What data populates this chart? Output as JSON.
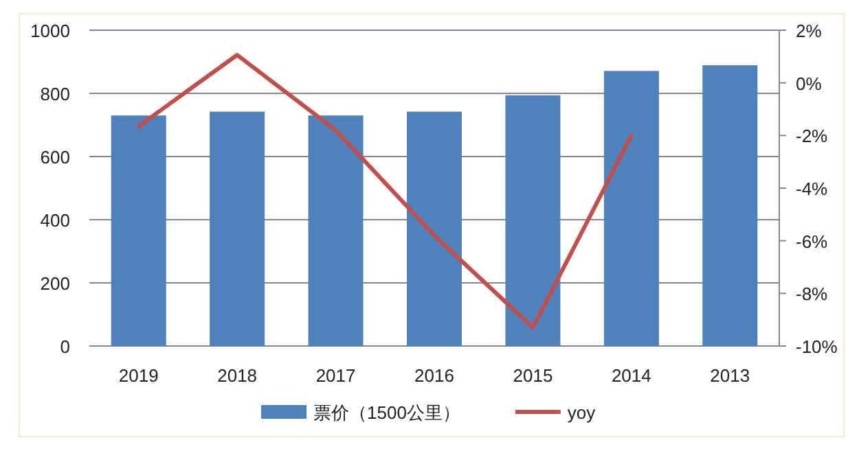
{
  "chart_data": {
    "type": "bar",
    "categories": [
      "2019",
      "2018",
      "2017",
      "2016",
      "2015",
      "2014",
      "2013"
    ],
    "series": [
      {
        "name": "票价（1500公里）",
        "color": "#4f81bd",
        "values": [
          730,
          742,
          730,
          742,
          794,
          871,
          889
        ]
      },
      {
        "name": "yoy",
        "type": "line",
        "axis": "y2",
        "color": "#c0504d",
        "values": [
          -1.65,
          1.06,
          -1.8,
          -5.8,
          -9.3,
          -2.0,
          null
        ]
      }
    ],
    "ylim": [
      0,
      1000
    ],
    "yticks": [
      0,
      200,
      400,
      600,
      800,
      1000
    ],
    "y2lim": [
      -10,
      2
    ],
    "y2ticks": [
      {
        "value": -10,
        "label": "-10%"
      },
      {
        "value": -8,
        "label": "-8%"
      },
      {
        "value": -6,
        "label": "-6%"
      },
      {
        "value": -4,
        "label": "-4%"
      },
      {
        "value": -2,
        "label": "-2%"
      },
      {
        "value": 0,
        "label": "0%"
      },
      {
        "value": 2,
        "label": "2%"
      }
    ],
    "grid": "y",
    "legend": "bottom"
  }
}
